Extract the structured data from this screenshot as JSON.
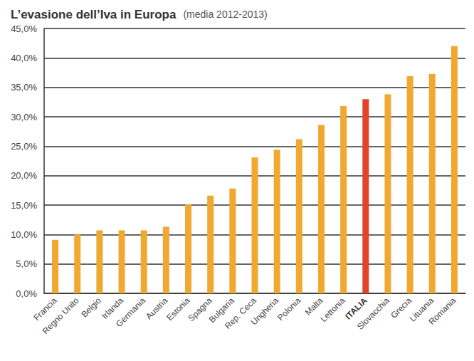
{
  "chart_data": {
    "type": "bar",
    "title": "L’evasione dell’Iva in Europa",
    "subtitle": "(media 2012-2013)",
    "categories": [
      "Francia",
      "Regno Unito",
      "Belgio",
      "Irlanda",
      "Germania",
      "Austria",
      "Estonia",
      "Spagna",
      "Bulgaria",
      "Rep. Ceca",
      "Ungheria",
      "Polonia",
      "Malta",
      "Lettonia",
      "ITALIA",
      "Slovacchia",
      "Grecia",
      "Lituania",
      "Romania"
    ],
    "values": [
      9.1,
      10.0,
      10.7,
      10.7,
      10.7,
      11.3,
      15.1,
      16.6,
      17.8,
      23.1,
      24.4,
      26.2,
      28.6,
      31.8,
      33.0,
      33.8,
      36.9,
      37.3,
      42.0
    ],
    "colors": [
      "#f0a830",
      "#f0a830",
      "#f0a830",
      "#f0a830",
      "#f0a830",
      "#f0a830",
      "#f0a830",
      "#f0a830",
      "#f0a830",
      "#f0a830",
      "#f0a830",
      "#f0a830",
      "#f0a830",
      "#f0a830",
      "#e2432a",
      "#f0a830",
      "#f0a830",
      "#f0a830",
      "#f0a830"
    ],
    "ylim": [
      0,
      45
    ],
    "yticks": [
      {
        "value": 0,
        "label": "0,0%"
      },
      {
        "value": 5,
        "label": "5,0%"
      },
      {
        "value": 10,
        "label": "10,0%"
      },
      {
        "value": 15,
        "label": "15,0%"
      },
      {
        "value": 20,
        "label": "20,0%"
      },
      {
        "value": 25,
        "label": "25,0%"
      },
      {
        "value": 30,
        "label": "30,0%"
      },
      {
        "value": 35,
        "label": "35,0%"
      },
      {
        "value": 40,
        "label": "40,0%"
      },
      {
        "value": 45,
        "label": "45,0%"
      }
    ],
    "grid": true
  }
}
